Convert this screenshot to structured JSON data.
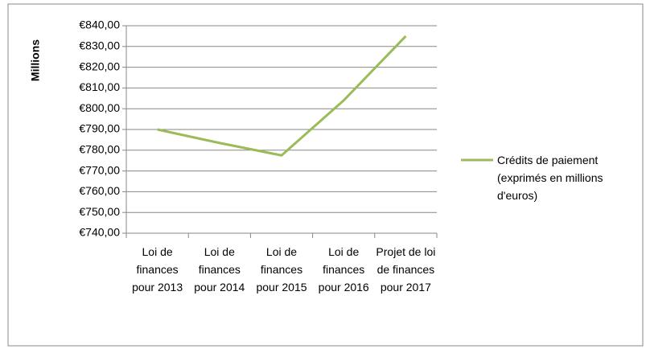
{
  "chart_data": {
    "type": "line",
    "y_label": "Millions",
    "categories": [
      "Loi de finances pour 2013",
      "Loi de finances pour 2014",
      "Loi de finances pour 2015",
      "Loi de finances pour 2016",
      "Projet de loi de finances pour 2017"
    ],
    "series": [
      {
        "name": "Crédits de paiement (exprimés en millions d'euros)",
        "color": "#9bbb59",
        "values": [
          790,
          783.5,
          777.5,
          804,
          835
        ]
      }
    ],
    "ylim": [
      740,
      840
    ],
    "yticks": [
      {
        "value": 740,
        "label": "€740,00"
      },
      {
        "value": 750,
        "label": "€750,00"
      },
      {
        "value": 760,
        "label": "€760,00"
      },
      {
        "value": 770,
        "label": "€770,00"
      },
      {
        "value": 780,
        "label": "€780,00"
      },
      {
        "value": 790,
        "label": "€790,00"
      },
      {
        "value": 800,
        "label": "€800,00"
      },
      {
        "value": 810,
        "label": "€810,00"
      },
      {
        "value": 820,
        "label": "€820,00"
      },
      {
        "value": 830,
        "label": "€830,00"
      },
      {
        "value": 840,
        "label": "€840,00"
      }
    ],
    "grid": true,
    "legend": "right"
  }
}
